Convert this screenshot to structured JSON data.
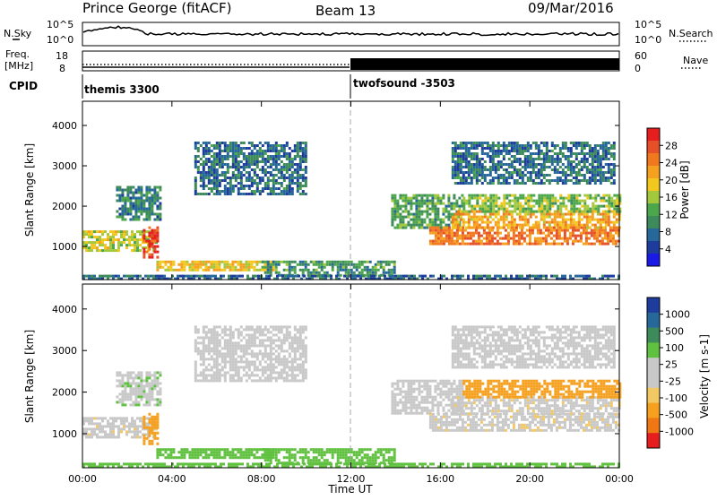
{
  "header": {
    "station": "Prince George (fitACF)",
    "beam": "Beam 13",
    "date": "09/Mar/2016"
  },
  "left_labels": {
    "nsky": "N.Sky",
    "freq": "Freq.",
    "freq_unit": "[MHz]",
    "cpid": "CPID"
  },
  "right_labels": {
    "nsearch": "N.Search",
    "nave": "Nave"
  },
  "noise_panel": {
    "left_ticks": [
      "10^5",
      "10^0"
    ],
    "right_ticks": [
      "10^5",
      "10^0"
    ]
  },
  "freq_panel": {
    "left_ticks": [
      "18",
      "8"
    ],
    "right_ticks": [
      "60",
      "0"
    ]
  },
  "cpid_segments": [
    {
      "label": "themis 3300",
      "start_hour": 0
    },
    {
      "label": "twofsound -3503",
      "start_hour": 12
    }
  ],
  "colors": {
    "power_scale": [
      "#1a1ae6",
      "#1e3c9c",
      "#27689a",
      "#3d8a5a",
      "#4ca64c",
      "#a4c83c",
      "#f2c81e",
      "#f5a01e",
      "#f0781e",
      "#e65028",
      "#e61e1e"
    ],
    "velocity_scale": [
      "#e61e1e",
      "#f07814",
      "#f5a01e",
      "#f2c864",
      "#c8c8c8",
      "#c8c8c8",
      "#60c040",
      "#3d8a5a",
      "#27689a",
      "#1e3c9c"
    ]
  },
  "chart_data": [
    {
      "type": "heatmap",
      "title": "Power",
      "xlabel": "Time UT",
      "ylabel": "Slant Range [km]",
      "xlim": [
        0,
        24
      ],
      "ylim": [
        180,
        4600
      ],
      "x_tick_labels": [
        "00:00",
        "04:00",
        "08:00",
        "12:00",
        "16:00",
        "20:00",
        "00:00"
      ],
      "y_tick_labels": [
        "1000",
        "2000",
        "3000",
        "4000"
      ],
      "colorbar": {
        "label": "Power [dB]",
        "range": [
          0,
          32
        ],
        "tick_labels": [
          "4",
          "8",
          "12",
          "16",
          "20",
          "24",
          "28"
        ]
      },
      "regions": [
        {
          "t": [
            0.0,
            3.3
          ],
          "r": [
            900,
            1400
          ],
          "value": 17
        },
        {
          "t": [
            2.7,
            3.4
          ],
          "r": [
            750,
            1500
          ],
          "value": 29
        },
        {
          "t": [
            3.3,
            8.5
          ],
          "r": [
            450,
            650
          ],
          "value": 19
        },
        {
          "t": [
            8.0,
            14.0
          ],
          "r": [
            300,
            650
          ],
          "value": 11
        },
        {
          "t": [
            0.0,
            24.0
          ],
          "r": [
            180,
            300
          ],
          "value": 7
        },
        {
          "t": [
            1.5,
            3.5
          ],
          "r": [
            1700,
            2500
          ],
          "value": 9
        },
        {
          "t": [
            5.0,
            10.0
          ],
          "r": [
            2300,
            3600
          ],
          "value": 8
        },
        {
          "t": [
            13.8,
            17.0
          ],
          "r": [
            1500,
            2300
          ],
          "value": 12
        },
        {
          "t": [
            15.5,
            24.0
          ],
          "r": [
            1100,
            1500
          ],
          "value": 25
        },
        {
          "t": [
            16.5,
            24.0
          ],
          "r": [
            1500,
            1900
          ],
          "value": 21
        },
        {
          "t": [
            17.0,
            24.0
          ],
          "r": [
            1900,
            2300
          ],
          "value": 15
        },
        {
          "t": [
            16.5,
            23.8
          ],
          "r": [
            2600,
            3600
          ],
          "value": 8
        }
      ]
    },
    {
      "type": "heatmap",
      "title": "Velocity",
      "xlabel": "Time UT",
      "ylabel": "Slant Range [km]",
      "xlim": [
        0,
        24
      ],
      "ylim": [
        180,
        4600
      ],
      "x_tick_labels": [
        "00:00",
        "04:00",
        "08:00",
        "12:00",
        "16:00",
        "20:00",
        "00:00"
      ],
      "y_tick_labels": [
        "1000",
        "2000",
        "3000",
        "4000"
      ],
      "colorbar": {
        "label": "Velocity [m s-1]",
        "tick_labels": [
          "1000",
          "500",
          "100",
          "25",
          "-25",
          "-100",
          "-500",
          "-1000"
        ]
      },
      "regions": [
        {
          "t": [
            0.0,
            3.3
          ],
          "r": [
            900,
            1400
          ],
          "value": -10
        },
        {
          "t": [
            2.7,
            3.4
          ],
          "r": [
            750,
            1500
          ],
          "value": -400
        },
        {
          "t": [
            3.3,
            8.5
          ],
          "r": [
            450,
            650
          ],
          "value": 60
        },
        {
          "t": [
            8.0,
            14.0
          ],
          "r": [
            300,
            650
          ],
          "value": 80
        },
        {
          "t": [
            0.0,
            24.0
          ],
          "r": [
            180,
            300
          ],
          "value": 50
        },
        {
          "t": [
            1.5,
            3.5
          ],
          "r": [
            1700,
            2500
          ],
          "value": 10
        },
        {
          "t": [
            5.0,
            10.0
          ],
          "r": [
            2300,
            3600
          ],
          "value": 5
        },
        {
          "t": [
            13.8,
            17.0
          ],
          "r": [
            1500,
            2300
          ],
          "value": 0
        },
        {
          "t": [
            15.5,
            24.0
          ],
          "r": [
            1100,
            1500
          ],
          "value": -10
        },
        {
          "t": [
            16.5,
            24.0
          ],
          "r": [
            1500,
            1900
          ],
          "value": -10
        },
        {
          "t": [
            17.0,
            24.0
          ],
          "r": [
            1900,
            2300
          ],
          "value": -150
        },
        {
          "t": [
            16.5,
            23.8
          ],
          "r": [
            2600,
            3600
          ],
          "value": 5
        }
      ]
    }
  ]
}
